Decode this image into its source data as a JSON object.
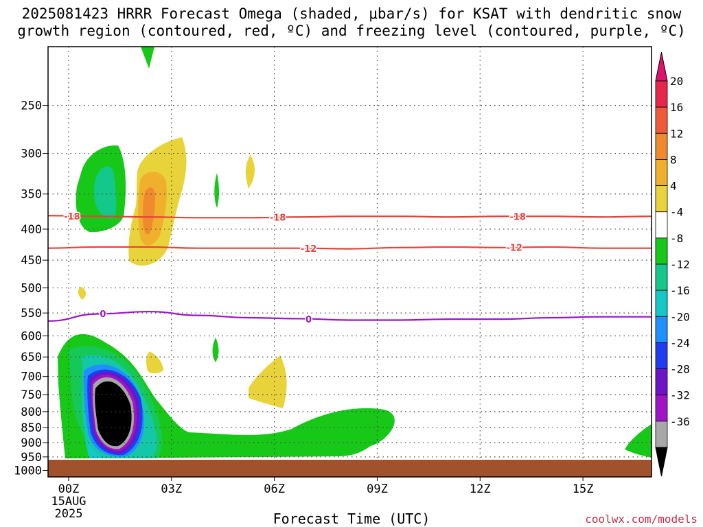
{
  "header": {
    "title_line1": "2025081423 HRRR Forecast Omega (shaded, μbar/s) for KSAT with dendritic snow",
    "title_line2": "growth region (contoured, red, ºC) and freezing level (contoured, purple, ºC)"
  },
  "footer": {
    "credit": "coolwx.com/models"
  },
  "chart_data": {
    "type": "contour",
    "title": "2025081423 HRRR Forecast Omega (shaded, μbar/s) for KSAT with dendritic snow growth region (contoured, red, ºC) and freezing level (contoured, purple, ºC)",
    "xlabel": "Forecast Time (UTC)",
    "ylabel": "",
    "x_ticks": [
      {
        "hour": 0,
        "label": "00Z",
        "sub": [
          "15AUG",
          "2025"
        ]
      },
      {
        "hour": 3,
        "label": "03Z"
      },
      {
        "hour": 6,
        "label": "06Z"
      },
      {
        "hour": 9,
        "label": "09Z"
      },
      {
        "hour": 12,
        "label": "12Z"
      },
      {
        "hour": 15,
        "label": "15Z"
      }
    ],
    "xlim": [
      -0.6,
      17
    ],
    "y_ticks": [
      250,
      300,
      350,
      400,
      450,
      500,
      550,
      600,
      650,
      700,
      750,
      800,
      850,
      900,
      950,
      1000
    ],
    "ylim_hpa": [
      200,
      1025
    ],
    "y_scale": "log",
    "grid": true,
    "terrain_below_hpa": 985,
    "terrain_color": "#a0522d",
    "colorbar": {
      "labels": [
        "20",
        "16",
        "12",
        "8",
        "4",
        "-4",
        "-8",
        "-12",
        "-16",
        "-20",
        "-24",
        "-28",
        "-32",
        "-36"
      ],
      "colors": [
        "#e8264a",
        "#f05a3a",
        "#f08a2e",
        "#f0b02e",
        "#e8d43a",
        "#ffffff",
        "#18c818",
        "#14c88c",
        "#14c8c8",
        "#1e90ff",
        "#1e3cf0",
        "#6e14c8",
        "#a014c8",
        "#a8a8a8"
      ],
      "top_arrow_color": "#e0106e",
      "bottom_arrow_color": "#000000"
    },
    "contours_red": [
      {
        "value": -18,
        "label": "-18",
        "hpa": [
          380,
          381,
          382,
          383,
          383,
          382,
          381,
          381,
          382,
          381,
          381,
          382,
          381
        ],
        "label_hours": [
          0.1,
          6.1,
          13.1
        ]
      },
      {
        "value": -12,
        "label": "-12",
        "hpa": [
          430,
          428,
          428,
          430,
          430,
          430,
          431,
          429,
          428,
          429,
          428,
          430,
          430
        ],
        "label_hours": [
          7.0,
          13.0
        ]
      }
    ],
    "contours_purple": [
      {
        "value": 0,
        "label": "0",
        "hpa": [
          567,
          552,
          547,
          555,
          560,
          562,
          565,
          565,
          563,
          563,
          560,
          558,
          558
        ],
        "label_hours": [
          1.0,
          7.0
        ]
      }
    ],
    "shaded_regions": [
      {
        "omega": "<= -8",
        "level": "green",
        "desc": "upper ascent around 00Z-01Z 300-400 hPa"
      },
      {
        "omega": ">= 8",
        "level": "yellow",
        "desc": "upper descent around 02Z 300-430 hPa"
      },
      {
        "omega": "<= -36",
        "level": "black",
        "desc": "strong low-level ascent 00Z-02Z 720-940 hPa"
      },
      {
        "omega": "<= -8",
        "level": "green",
        "desc": "low-level band 00Z-09Z 850-980 hPa"
      }
    ],
    "legend": "right colorbar"
  }
}
